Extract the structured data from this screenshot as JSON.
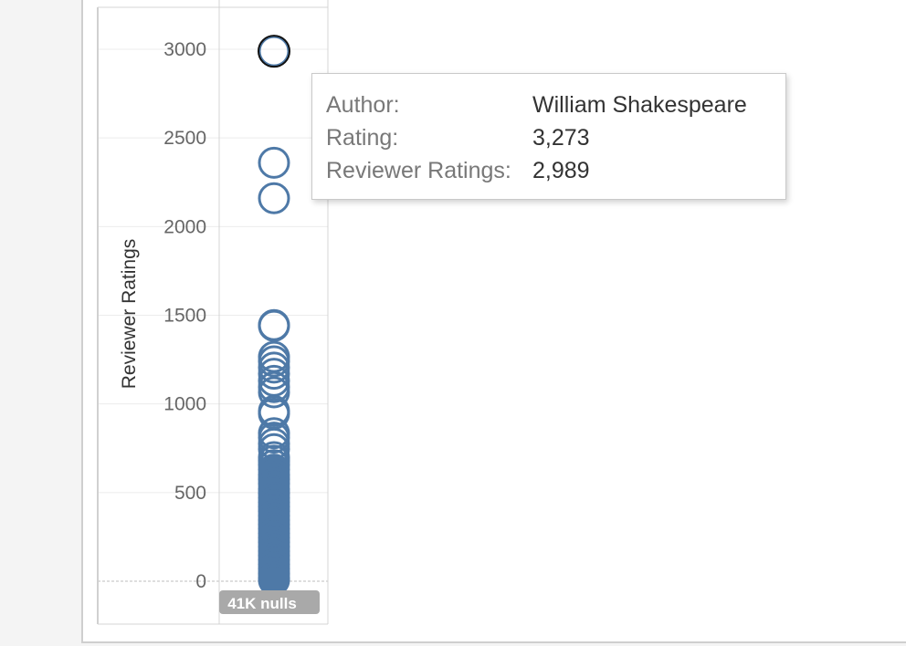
{
  "chart_data": {
    "type": "scatter",
    "ylabel": "Reviewer Ratings",
    "ylim": [
      0,
      3000
    ],
    "y_ticks": [
      0,
      500,
      1000,
      1500,
      2000,
      2500,
      3000
    ],
    "grid": true,
    "series": [
      {
        "color": "#4e79a7",
        "values": [
          2989,
          2360,
          2160,
          1445,
          1440,
          1265,
          1240,
          1205,
          1170,
          1130,
          1095,
          1065,
          960,
          945,
          835,
          810,
          775,
          745,
          700,
          680,
          655,
          630,
          600,
          575,
          550,
          520,
          495,
          470,
          445,
          420,
          395,
          370,
          345,
          320,
          295,
          270,
          245,
          220,
          195,
          170,
          145,
          120,
          95,
          70,
          45,
          20,
          5
        ]
      }
    ],
    "highlighted_point": {
      "y": 2989
    },
    "null_indicator": "41K nulls"
  },
  "tooltip": {
    "rows": [
      {
        "key": "Author:",
        "value": "William Shakespeare"
      },
      {
        "key": "Rating:",
        "value": "3,273"
      },
      {
        "key": "Reviewer Ratings:",
        "value": "2,989"
      }
    ]
  },
  "colors": {
    "mark": "#4e79a7",
    "highlight_stroke": "#111111",
    "nulls_badge": "#a9a9a9"
  }
}
